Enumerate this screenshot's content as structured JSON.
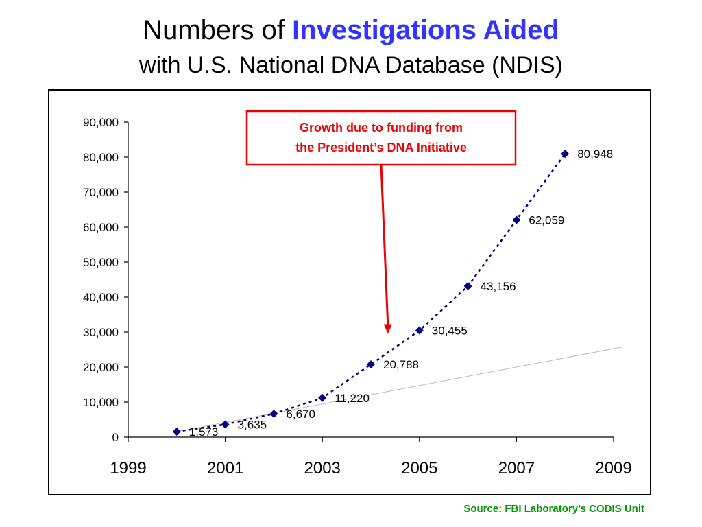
{
  "slide": {
    "title_prefix": "Numbers of ",
    "title_highlight": "Investigations Aided",
    "subtitle": "with U.S. National DNA Database (NDIS)",
    "source": "Source: FBI Laboratory’s CODIS Unit",
    "accent_color": "#3333ff",
    "source_color": "#009900"
  },
  "chart_data": {
    "type": "scatter",
    "title": "Investigations Aided",
    "xlabel": "",
    "ylabel": "",
    "xlim": [
      1999,
      2009
    ],
    "ylim": [
      0,
      90000
    ],
    "x_ticks": [
      "1999",
      "2001",
      "2003",
      "2005",
      "2007",
      "2009"
    ],
    "y_ticks": [
      "0",
      "10,000",
      "20,000",
      "30,000",
      "40,000",
      "50,000",
      "60,000",
      "70,000",
      "80,000",
      "90,000"
    ],
    "series": [
      {
        "x": [
          2000,
          2001,
          2002,
          2003,
          2004,
          2005,
          2006,
          2007,
          2008
        ],
        "values": [
          1573,
          3635,
          6670,
          11220,
          20788,
          30455,
          43156,
          62059,
          80948
        ],
        "labels": [
          "1,573",
          "3,635",
          "6,670",
          "11,220",
          "20,788",
          "30,455",
          "43,156",
          "62,059",
          "80,948"
        ],
        "color": "#000080",
        "line_style": "dotted",
        "marker": "diamond"
      }
    ],
    "trend_line": {
      "x": [
        2000,
        2009.2
      ],
      "values": [
        1573,
        25800
      ],
      "color": "#bbbbbb"
    },
    "grid": false,
    "annotation": {
      "line1": "Growth due to funding from",
      "line2": "the President’s DNA Initiative",
      "color": "#ee0000",
      "arrow_x": 2004.35,
      "arrow_y": 29500
    }
  }
}
